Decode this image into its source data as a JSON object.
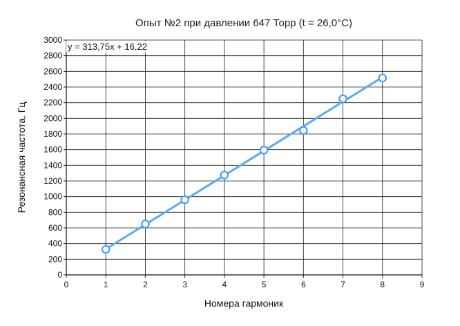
{
  "chart_data": {
    "type": "scatter",
    "title": "Опыт №2 при давлении 647 Торр (t = 26,0°C)",
    "xlabel": "Номера гармоник",
    "ylabel": "Резонансная частота, Гц",
    "xlim": [
      0,
      9
    ],
    "ylim": [
      0,
      3000
    ],
    "xticks": [
      0,
      1,
      2,
      3,
      4,
      5,
      6,
      7,
      8,
      9
    ],
    "yticks": [
      0,
      200,
      400,
      600,
      800,
      1000,
      1200,
      1400,
      1600,
      1800,
      2000,
      2200,
      2400,
      2600,
      2800,
      3000
    ],
    "grid": true,
    "series": [
      {
        "x": [
          1,
          2,
          3,
          4,
          5,
          6,
          7,
          8
        ],
        "y": [
          325,
          650,
          960,
          1275,
          1595,
          1845,
          2250,
          2515
        ],
        "marker": "circle-open",
        "color": "#4a9ff0"
      }
    ],
    "trendline": {
      "slope": 313.75,
      "intercept": 16.22,
      "x_range": [
        1,
        8
      ],
      "equation_label": "y = 313,75x + 16,22",
      "color": "#5aaaf5"
    }
  }
}
